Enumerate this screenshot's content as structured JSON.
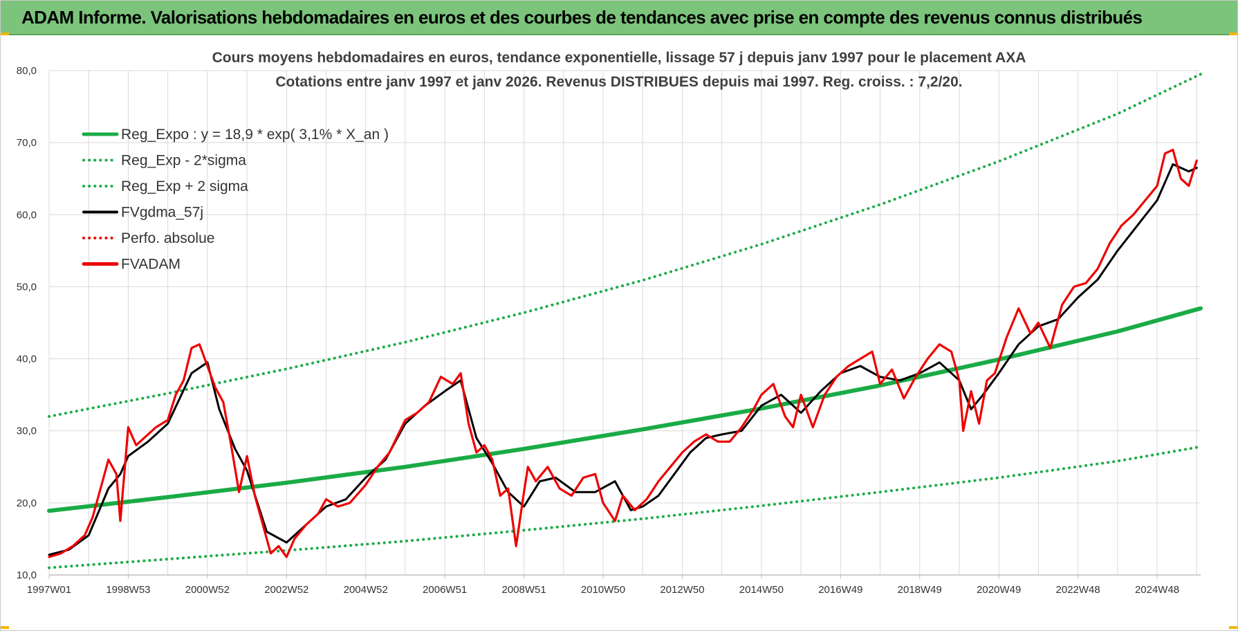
{
  "banner": {
    "title": "ADAM Informe. Valorisations hebdomadaires en euros et des courbes de tendances avec prise en compte des revenus connus distribués"
  },
  "colors": {
    "banner_bg": "#7cc47c",
    "regression": "#1aab46",
    "bands": "#1aab46",
    "moving_average": "#000000",
    "fvadam": "#ee0000",
    "perfo": "#ee0000",
    "grid": "#d9d9d9"
  },
  "chart_data": {
    "type": "line",
    "title": "Cours moyens hebdomadaires en euros, tendance exponentielle, lissage 57 j depuis janv 1997 pour le placement AXA",
    "subtitle": "Cotations entre janv 1997 et janv 2026. Revenus DISTRIBUES depuis mai 1997. Reg. croiss. : 7,2/20.",
    "x_range": [
      1997.0,
      2026.1
    ],
    "ylim": [
      10,
      80
    ],
    "y_ticks": [
      "10,0",
      "20,0",
      "30,0",
      "40,0",
      "50,0",
      "60,0",
      "70,0",
      "80,0"
    ],
    "x_ticks": [
      {
        "label": "1997W01",
        "year": 1997.0
      },
      {
        "label": "1998W53",
        "year": 1999.0
      },
      {
        "label": "2000W52",
        "year": 2001.0
      },
      {
        "label": "2002W52",
        "year": 2003.0
      },
      {
        "label": "2004W52",
        "year": 2005.0
      },
      {
        "label": "2006W51",
        "year": 2007.0
      },
      {
        "label": "2008W51",
        "year": 2009.0
      },
      {
        "label": "2010W50",
        "year": 2011.0
      },
      {
        "label": "2012W50",
        "year": 2013.0
      },
      {
        "label": "2014W50",
        "year": 2015.0
      },
      {
        "label": "2016W49",
        "year": 2017.0
      },
      {
        "label": "2018W49",
        "year": 2019.0
      },
      {
        "label": "2020W49",
        "year": 2021.0
      },
      {
        "label": "2022W48",
        "year": 2023.0
      },
      {
        "label": "2024W48",
        "year": 2025.0
      }
    ],
    "grid": true,
    "legend_position": "top-left",
    "series": [
      {
        "name": "Reg_Expo : y = 18,9 * exp( 3,1% *  X_an )",
        "style": "solid-thick",
        "color": "#1aab46",
        "x": [
          1997.0,
          2000.0,
          2003.0,
          2006.0,
          2009.0,
          2012.0,
          2015.0,
          2018.0,
          2021.0,
          2024.0,
          2026.1
        ],
        "y": [
          18.9,
          20.8,
          22.8,
          25.0,
          27.5,
          30.2,
          33.1,
          36.3,
          39.9,
          43.8,
          47.0
        ]
      },
      {
        "name": "Reg_Exp - 2*sigma",
        "style": "dotted",
        "color": "#1aab46",
        "x": [
          1997.0,
          2000.0,
          2003.0,
          2006.0,
          2009.0,
          2012.0,
          2015.0,
          2018.0,
          2021.0,
          2024.0,
          2026.1
        ],
        "y": [
          11.0,
          12.2,
          13.4,
          14.7,
          16.2,
          17.8,
          19.6,
          21.5,
          23.5,
          25.8,
          27.8
        ]
      },
      {
        "name": "Reg_Exp + 2 sigma",
        "style": "dotted",
        "color": "#1aab46",
        "x": [
          1997.0,
          2000.0,
          2003.0,
          2006.0,
          2009.0,
          2012.0,
          2015.0,
          2018.0,
          2021.0,
          2024.0,
          2026.1
        ],
        "y": [
          32.0,
          35.2,
          38.6,
          42.3,
          46.4,
          50.9,
          55.9,
          61.4,
          67.4,
          74.0,
          79.5
        ]
      },
      {
        "name": "FVgdma_57j",
        "style": "solid",
        "color": "#000000",
        "x": [
          1997.0,
          1997.5,
          1998.0,
          1998.5,
          1998.8,
          1999.0,
          1999.5,
          2000.0,
          2000.3,
          2000.6,
          2001.0,
          2001.3,
          2001.7,
          2002.0,
          2002.5,
          2003.0,
          2003.3,
          2003.7,
          2004.0,
          2004.5,
          2005.0,
          2005.5,
          2006.0,
          2006.5,
          2007.0,
          2007.4,
          2007.8,
          2008.2,
          2008.6,
          2009.0,
          2009.4,
          2009.8,
          2010.3,
          2010.8,
          2011.3,
          2011.7,
          2012.0,
          2012.4,
          2012.8,
          2013.2,
          2013.6,
          2014.0,
          2014.5,
          2015.0,
          2015.5,
          2016.0,
          2016.5,
          2017.0,
          2017.5,
          2018.0,
          2018.5,
          2019.0,
          2019.5,
          2020.0,
          2020.3,
          2020.6,
          2021.0,
          2021.5,
          2022.0,
          2022.5,
          2023.0,
          2023.5,
          2024.0,
          2024.5,
          2025.0,
          2025.4,
          2025.8,
          2026.0
        ],
        "y": [
          12.8,
          13.5,
          15.5,
          22.0,
          24.0,
          26.5,
          28.5,
          31.0,
          34.5,
          38.0,
          39.5,
          33.0,
          27.5,
          24.5,
          16.0,
          14.5,
          16.0,
          18.0,
          19.5,
          20.5,
          23.5,
          26.0,
          31.0,
          33.5,
          35.5,
          37.0,
          29.0,
          25.5,
          21.5,
          19.5,
          23.0,
          23.5,
          21.5,
          21.5,
          23.0,
          19.0,
          19.5,
          21.0,
          24.0,
          27.0,
          29.0,
          29.5,
          30.0,
          33.5,
          35.0,
          32.5,
          35.5,
          38.0,
          39.0,
          37.5,
          37.0,
          38.0,
          39.5,
          37.0,
          33.0,
          35.0,
          38.0,
          42.0,
          44.5,
          45.5,
          48.5,
          51.0,
          55.0,
          58.5,
          62.0,
          67.0,
          66.0,
          66.5
        ]
      },
      {
        "name": "Perfo. absolue",
        "style": "dotted",
        "color": "#ee0000",
        "x": [],
        "y": []
      },
      {
        "name": "FVADAM",
        "style": "solid-thick",
        "color": "#ee0000",
        "x": [
          1997.0,
          1997.3,
          1997.6,
          1997.9,
          1998.1,
          1998.3,
          1998.5,
          1998.7,
          1998.8,
          1999.0,
          1999.2,
          1999.5,
          1999.7,
          2000.0,
          2000.2,
          2000.4,
          2000.6,
          2000.8,
          2001.0,
          2001.2,
          2001.4,
          2001.6,
          2001.8,
          2002.0,
          2002.2,
          2002.4,
          2002.6,
          2002.8,
          2003.0,
          2003.2,
          2003.5,
          2003.8,
          2004.0,
          2004.3,
          2004.6,
          2005.0,
          2005.3,
          2005.6,
          2006.0,
          2006.3,
          2006.6,
          2006.9,
          2007.2,
          2007.4,
          2007.6,
          2007.8,
          2008.0,
          2008.2,
          2008.4,
          2008.6,
          2008.8,
          2009.0,
          2009.1,
          2009.3,
          2009.6,
          2009.9,
          2010.2,
          2010.5,
          2010.8,
          2011.0,
          2011.3,
          2011.5,
          2011.8,
          2012.1,
          2012.4,
          2012.7,
          2013.0,
          2013.3,
          2013.6,
          2013.9,
          2014.2,
          2014.5,
          2014.8,
          2015.0,
          2015.3,
          2015.6,
          2015.8,
          2016.0,
          2016.3,
          2016.6,
          2016.9,
          2017.2,
          2017.5,
          2017.8,
          2018.0,
          2018.3,
          2018.6,
          2018.9,
          2019.2,
          2019.5,
          2019.8,
          2020.0,
          2020.1,
          2020.3,
          2020.5,
          2020.7,
          2020.9,
          2021.2,
          2021.5,
          2021.8,
          2022.0,
          2022.3,
          2022.6,
          2022.9,
          2023.2,
          2023.5,
          2023.8,
          2024.1,
          2024.4,
          2024.7,
          2025.0,
          2025.2,
          2025.4,
          2025.6,
          2025.8,
          2026.0
        ],
        "y": [
          12.5,
          13.0,
          14.0,
          15.5,
          18.0,
          22.0,
          26.0,
          24.0,
          17.5,
          30.5,
          28.0,
          29.5,
          30.5,
          31.5,
          35.0,
          37.0,
          41.5,
          42.0,
          39.0,
          36.0,
          34.0,
          28.0,
          21.5,
          26.5,
          21.0,
          17.0,
          13.0,
          14.0,
          12.5,
          15.0,
          17.0,
          18.5,
          20.5,
          19.5,
          20.0,
          22.5,
          25.0,
          27.0,
          31.5,
          32.5,
          34.0,
          37.5,
          36.5,
          38.0,
          31.0,
          27.0,
          28.0,
          26.0,
          21.0,
          22.0,
          14.0,
          21.5,
          25.0,
          23.0,
          25.0,
          22.0,
          21.0,
          23.5,
          24.0,
          20.0,
          17.5,
          21.0,
          19.0,
          20.5,
          23.0,
          25.0,
          27.0,
          28.5,
          29.5,
          28.5,
          28.5,
          30.5,
          33.0,
          35.0,
          36.5,
          32.0,
          30.5,
          35.0,
          30.5,
          35.0,
          37.5,
          39.0,
          40.0,
          41.0,
          36.5,
          38.5,
          34.5,
          37.5,
          40.0,
          42.0,
          41.0,
          37.0,
          30.0,
          35.5,
          31.0,
          37.0,
          38.0,
          43.0,
          47.0,
          43.5,
          45.0,
          41.5,
          47.5,
          50.0,
          50.5,
          52.5,
          56.0,
          58.5,
          60.0,
          62.0,
          64.0,
          68.5,
          69.0,
          65.0,
          64.0,
          67.5
        ]
      }
    ]
  }
}
